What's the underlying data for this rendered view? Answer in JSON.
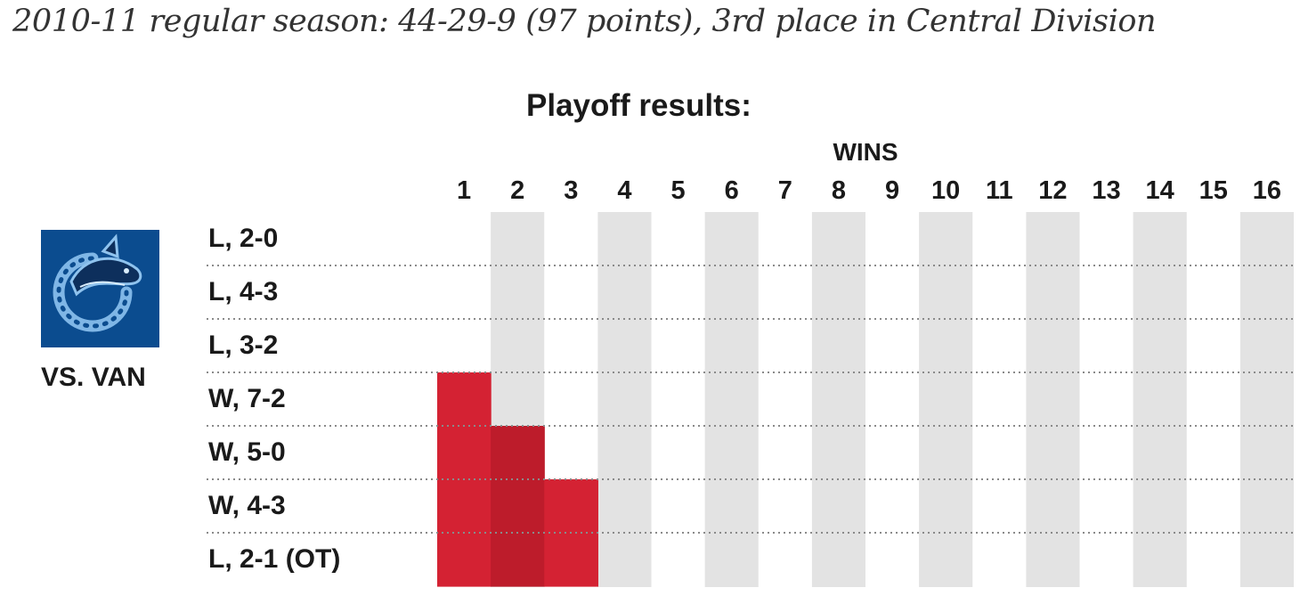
{
  "season_line": "2010-11 regular season: 44-29-9 (97 points), 3rd place in Central Division",
  "playoff_title": "Playoff results:",
  "opponent": {
    "label": "VS. VAN",
    "logo_icon": "vancouver-canucks-orca-logo"
  },
  "colors": {
    "win_bar": "#d42233",
    "win_bar_dark": "#bd1c2b",
    "column_band": "#e3e3e3",
    "logo_bg": "#0b4c8f",
    "text": "#1a1a1a"
  },
  "chart_data": {
    "type": "bar",
    "title": "Playoff results:",
    "xlabel": "WINS",
    "x_ticks": [
      "1",
      "2",
      "3",
      "4",
      "5",
      "6",
      "7",
      "8",
      "9",
      "10",
      "11",
      "12",
      "13",
      "14",
      "15",
      "16"
    ],
    "games": [
      "L, 2-0",
      "L, 4-3",
      "L, 3-2",
      "W, 7-2",
      "W, 5-0",
      "W, 4-3",
      "L, 2-1 (OT)"
    ],
    "cumulative_wins": [
      0,
      0,
      0,
      1,
      2,
      3,
      3
    ],
    "xlim": [
      0,
      16
    ]
  }
}
